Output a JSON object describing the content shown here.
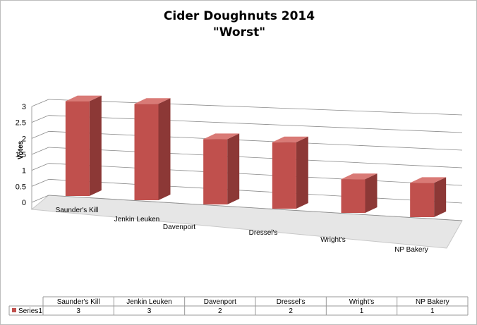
{
  "chart_data": {
    "type": "bar",
    "title": "Cider Doughnuts 2014",
    "subtitle": "\"Worst\"",
    "ylabel": "Votes",
    "xlabel": "",
    "categories": [
      "Saunder's Kill",
      "Jenkin Leuken",
      "Davenport",
      "Dressel's",
      "Wright's",
      "NP Bakery"
    ],
    "series": [
      {
        "name": "Series1",
        "values": [
          3,
          3,
          2,
          2,
          1,
          1
        ]
      }
    ],
    "yticks": [
      "0",
      "0.5",
      "1",
      "1.5",
      "2",
      "2.5",
      "3"
    ],
    "ylim": [
      0,
      3
    ],
    "grid": true,
    "legend_position": "bottom data table",
    "style": "3d-column",
    "colors": {
      "bar_front": "#c0504d",
      "bar_side": "#8c3836",
      "bar_top": "#d97a76",
      "floor": "#e6e6e6",
      "grid": "#8a8a8a"
    }
  }
}
